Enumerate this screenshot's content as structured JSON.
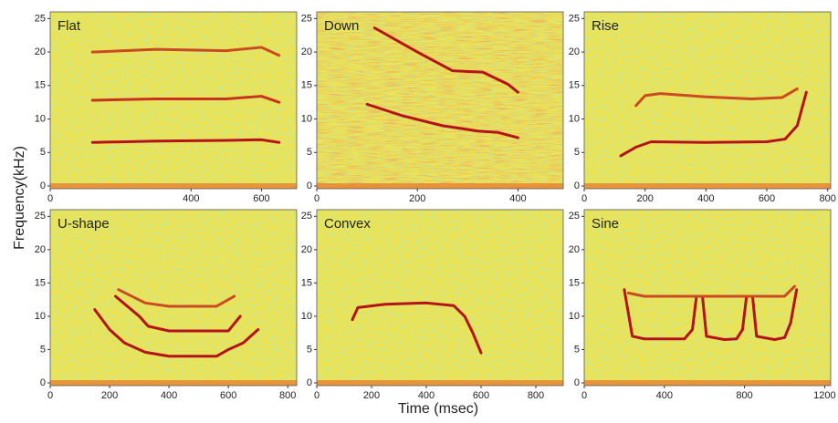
{
  "ylabel": "Frequency(kHz)",
  "xlabel": "Time (msec)",
  "chart_data": [
    {
      "type": "spectrogram",
      "title": "Flat",
      "xlim": [
        0,
        700
      ],
      "xticks": [
        0,
        400,
        600
      ],
      "ylim": [
        0,
        26
      ],
      "yticks": [
        0,
        5,
        10,
        15,
        20,
        25
      ],
      "series": [
        {
          "color": "#b5121b",
          "x": [
            120,
            300,
            500,
            600,
            650
          ],
          "values": [
            6.5,
            6.7,
            6.8,
            6.9,
            6.5
          ]
        },
        {
          "color": "#c8321e",
          "x": [
            120,
            300,
            500,
            600,
            650
          ],
          "values": [
            12.8,
            13,
            13,
            13.4,
            12.5
          ]
        },
        {
          "color": "#cc4a22",
          "x": [
            120,
            300,
            500,
            600,
            650
          ],
          "values": [
            20,
            20.4,
            20.2,
            20.7,
            19.5
          ]
        }
      ]
    },
    {
      "type": "spectrogram",
      "title": "Down",
      "xlim": [
        0,
        490
      ],
      "xticks": [
        0,
        200,
        400
      ],
      "ylim": [
        0,
        26
      ],
      "yticks": [
        0,
        5,
        10,
        15,
        20,
        25
      ],
      "series": [
        {
          "color": "#b5121b",
          "x": [
            115,
            200,
            270,
            330,
            380,
            400
          ],
          "values": [
            23.6,
            20,
            17.2,
            17,
            15.2,
            14
          ]
        },
        {
          "color": "#b5121b",
          "x": [
            100,
            170,
            250,
            320,
            360,
            400
          ],
          "values": [
            12.2,
            10.5,
            9,
            8.2,
            8,
            7.2
          ]
        }
      ]
    },
    {
      "type": "spectrogram",
      "title": "Rise",
      "xlim": [
        0,
        810
      ],
      "xticks": [
        0,
        200,
        400,
        600,
        800
      ],
      "ylim": [
        0,
        26
      ],
      "yticks": [
        0,
        5,
        10,
        15,
        20,
        25
      ],
      "series": [
        {
          "color": "#b5121b",
          "x": [
            120,
            170,
            220,
            400,
            600,
            660,
            700,
            730
          ],
          "values": [
            4.5,
            5.8,
            6.6,
            6.5,
            6.6,
            7,
            9,
            14
          ]
        },
        {
          "color": "#cc4a22",
          "x": [
            170,
            200,
            250,
            400,
            550,
            650,
            700
          ],
          "values": [
            12,
            13.5,
            13.8,
            13.3,
            13,
            13.2,
            14.5
          ]
        }
      ]
    },
    {
      "type": "spectrogram",
      "title": "U-shape",
      "xlim": [
        0,
        830
      ],
      "xticks": [
        0,
        200,
        400,
        600,
        800
      ],
      "ylim": [
        0,
        26
      ],
      "yticks": [
        0,
        5,
        10,
        15,
        20,
        25
      ],
      "series": [
        {
          "color": "#b5121b",
          "x": [
            150,
            200,
            250,
            320,
            400,
            560,
            600,
            650,
            700
          ],
          "values": [
            11,
            8,
            6,
            4.6,
            4,
            4,
            5,
            6,
            8
          ]
        },
        {
          "color": "#b5121b",
          "x": [
            220,
            300,
            330,
            400,
            600,
            640
          ],
          "values": [
            13,
            10,
            8.5,
            7.8,
            7.8,
            10
          ]
        },
        {
          "color": "#cc4a22",
          "x": [
            230,
            320,
            400,
            560,
            620
          ],
          "values": [
            14,
            12,
            11.5,
            11.5,
            13
          ]
        }
      ]
    },
    {
      "type": "spectrogram",
      "title": "Convex",
      "xlim": [
        0,
        900
      ],
      "xticks": [
        0,
        200,
        400,
        600,
        800
      ],
      "ylim": [
        0,
        26
      ],
      "yticks": [
        0,
        5,
        10,
        15,
        20,
        25
      ],
      "series": [
        {
          "color": "#b5121b",
          "x": [
            130,
            150,
            250,
            400,
            500,
            540,
            570,
            600
          ],
          "values": [
            9.5,
            11.3,
            11.8,
            12,
            11.6,
            10,
            7.5,
            4.5
          ]
        }
      ]
    },
    {
      "type": "spectrogram",
      "title": "Sine",
      "xlim": [
        0,
        1230
      ],
      "xticks": [
        0,
        400,
        800,
        1200
      ],
      "ylim": [
        0,
        26
      ],
      "yticks": [
        0,
        5,
        10,
        15,
        20,
        25
      ],
      "series": [
        {
          "color": "#b5121b",
          "x": [
            200,
            240,
            300,
            500,
            540,
            560,
            590,
            610,
            700,
            760,
            790,
            810,
            840,
            860,
            950,
            1000,
            1030,
            1060
          ],
          "values": [
            14,
            7,
            6.6,
            6.6,
            8,
            13,
            13,
            7,
            6.5,
            6.6,
            8,
            13,
            13,
            7,
            6.5,
            6.8,
            9,
            14
          ]
        },
        {
          "color": "#cc4a22",
          "x": [
            220,
            300,
            500,
            700,
            1000,
            1050
          ],
          "values": [
            13.5,
            13,
            13,
            13,
            13,
            14.5
          ]
        }
      ]
    }
  ]
}
